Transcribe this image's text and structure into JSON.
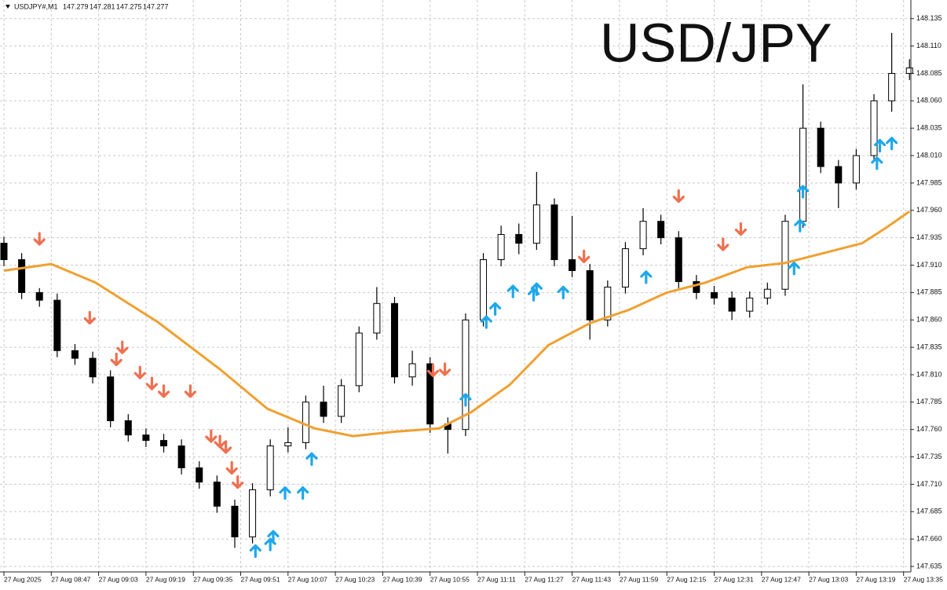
{
  "chart_data": {
    "type": "candlestick",
    "title": "USD/JPY",
    "subtitle": "USDJPY#,M1",
    "quote": [
      147.279,
      147.281,
      147.275,
      147.277
    ],
    "xlim": [
      0,
      307
    ],
    "xticks": [
      {
        "value": 0,
        "label": "27 Aug 2025"
      },
      {
        "value": 16,
        "label": "27 Aug 08:47"
      },
      {
        "value": 32,
        "label": "27 Aug 09:03"
      },
      {
        "value": 48,
        "label": "27 Aug 09:19"
      },
      {
        "value": 64,
        "label": "27 Aug 09:35"
      },
      {
        "value": 80,
        "label": "27 Aug 09:51"
      },
      {
        "value": 96,
        "label": "27 Aug 10:07"
      },
      {
        "value": 112,
        "label": "27 Aug 10:23"
      },
      {
        "value": 128,
        "label": "27 Aug 10:39"
      },
      {
        "value": 144,
        "label": "27 Aug 10:55"
      },
      {
        "value": 160,
        "label": "27 Aug 11:11"
      },
      {
        "value": 176,
        "label": "27 Aug 11:27"
      },
      {
        "value": 192,
        "label": "27 Aug 11:43"
      },
      {
        "value": 208,
        "label": "27 Aug 11:59"
      },
      {
        "value": 224,
        "label": "27 Aug 12:15"
      },
      {
        "value": 240,
        "label": "27 Aug 12:31"
      },
      {
        "value": 256,
        "label": "27 Aug 12:47"
      },
      {
        "value": 272,
        "label": "27 Aug 13:03"
      },
      {
        "value": 288,
        "label": "27 Aug 13:19"
      },
      {
        "value": 304,
        "label": "27 Aug 13:35"
      }
    ],
    "ylim": [
      147.63,
      148.152
    ],
    "yticks": [
      148.135,
      {
        "value": 148.11,
        "label": "148.110"
      },
      148.085,
      {
        "value": 148.06,
        "label": "148.060"
      },
      148.035,
      {
        "value": 148.01,
        "label": "148.010"
      },
      147.985,
      {
        "value": 147.96,
        "label": "147.960"
      },
      147.935,
      {
        "value": 147.91,
        "label": "147.910"
      },
      147.885,
      {
        "value": 147.86,
        "label": "147.860"
      },
      147.835,
      {
        "value": 147.81,
        "label": "147.810"
      },
      147.785,
      {
        "value": 147.76,
        "label": "147.760"
      },
      147.735,
      {
        "value": 147.71,
        "label": "147.710"
      },
      147.685,
      {
        "value": 147.66,
        "label": "147.660"
      },
      147.635
    ],
    "grid": true,
    "candles": {
      "up_color": "#ffffff",
      "down_color": "#000000",
      "x": [
        0,
        6,
        12,
        18,
        24,
        30,
        36,
        42,
        48,
        54,
        60,
        66,
        72,
        78,
        84,
        90,
        96,
        102,
        108,
        114,
        120,
        126,
        132,
        138,
        144,
        150,
        156,
        162,
        168,
        174,
        180,
        186,
        192,
        198,
        204,
        210,
        216,
        222,
        228,
        234,
        240,
        246,
        252,
        258,
        264,
        270,
        276,
        282,
        288,
        294,
        300,
        306
      ],
      "open": [
        147.93,
        147.915,
        147.885,
        147.878,
        147.832,
        147.825,
        147.808,
        147.768,
        147.755,
        147.75,
        147.745,
        147.725,
        147.712,
        147.69,
        147.662,
        147.705,
        147.745,
        147.748,
        147.785,
        147.772,
        147.8,
        147.848,
        147.875,
        147.808,
        147.82,
        147.765,
        147.76,
        147.86,
        147.915,
        147.938,
        147.93,
        147.965,
        147.915,
        147.905,
        147.86,
        147.89,
        147.925,
        147.95,
        147.935,
        147.895,
        147.885,
        147.88,
        147.868,
        147.88,
        147.888,
        147.95,
        148.035,
        148,
        147.985,
        148.01,
        148.06,
        148.085
      ],
      "high": [
        147.936,
        147.921,
        147.889,
        147.884,
        147.838,
        147.831,
        147.814,
        147.774,
        147.761,
        147.756,
        147.751,
        147.731,
        147.718,
        147.696,
        147.711,
        147.751,
        147.762,
        147.791,
        147.8,
        147.806,
        147.854,
        147.89,
        147.881,
        147.832,
        147.826,
        147.771,
        147.866,
        147.921,
        147.946,
        147.948,
        147.995,
        147.971,
        147.955,
        147.911,
        147.896,
        147.931,
        147.962,
        147.956,
        147.941,
        147.901,
        147.891,
        147.886,
        147.886,
        147.894,
        147.956,
        148.075,
        148.041,
        148.006,
        148.016,
        148.066,
        148.122,
        148.098
      ],
      "low": [
        147.909,
        147.879,
        147.872,
        147.826,
        147.819,
        147.802,
        147.762,
        147.749,
        147.744,
        147.739,
        147.719,
        147.706,
        147.684,
        147.652,
        147.656,
        147.699,
        147.739,
        147.742,
        147.766,
        147.766,
        147.794,
        147.842,
        147.802,
        147.8,
        147.757,
        147.738,
        147.754,
        147.854,
        147.909,
        147.92,
        147.924,
        147.909,
        147.899,
        147.842,
        147.854,
        147.884,
        147.919,
        147.929,
        147.889,
        147.879,
        147.874,
        147.86,
        147.862,
        147.874,
        147.882,
        147.944,
        147.994,
        147.962,
        147.979,
        148.004,
        148.05,
        148.079
      ],
      "close": [
        147.915,
        147.885,
        147.878,
        147.832,
        147.825,
        147.808,
        147.768,
        147.755,
        147.75,
        147.745,
        147.725,
        147.712,
        147.69,
        147.662,
        147.705,
        147.745,
        147.748,
        147.785,
        147.772,
        147.8,
        147.848,
        147.875,
        147.808,
        147.82,
        147.765,
        147.76,
        147.86,
        147.915,
        147.938,
        147.93,
        147.965,
        147.915,
        147.905,
        147.86,
        147.89,
        147.925,
        147.95,
        147.935,
        147.895,
        147.885,
        147.88,
        147.868,
        147.88,
        147.888,
        147.95,
        148.035,
        148,
        147.985,
        148.01,
        148.06,
        148.085,
        148.09
      ]
    },
    "moving_average": {
      "color": "#f0a030",
      "x": [
        0,
        16,
        31,
        52,
        73,
        89,
        105,
        118,
        132,
        147,
        158,
        171,
        184,
        198,
        211,
        224,
        237,
        251,
        264,
        277,
        290,
        298,
        306
      ],
      "values": [
        147.905,
        147.911,
        147.894,
        147.858,
        147.815,
        147.779,
        147.761,
        147.754,
        147.758,
        147.761,
        147.776,
        147.801,
        147.837,
        147.857,
        147.869,
        147.885,
        147.894,
        147.908,
        147.912,
        147.921,
        147.93,
        147.944,
        147.959
      ]
    },
    "signals": {
      "sell": {
        "color": "#ee7050",
        "x": [
          12,
          29,
          40,
          38,
          46,
          50,
          54,
          63,
          70,
          73,
          75,
          77,
          79,
          145,
          149,
          196,
          228,
          243,
          249
        ],
        "values": [
          147.934,
          147.862,
          147.835,
          147.824,
          147.812,
          147.802,
          147.795,
          147.795,
          147.754,
          147.749,
          147.744,
          147.725,
          147.712,
          147.814,
          147.815,
          147.918,
          147.973,
          147.929,
          147.943
        ]
      },
      "buy": {
        "color": "#1ea8ea",
        "x": [
          85,
          90,
          91,
          95,
          101,
          104,
          156,
          163,
          166,
          172,
          179,
          180,
          189,
          217,
          267,
          269,
          270,
          295,
          296,
          300
        ],
        "values": [
          147.649,
          147.655,
          147.662,
          147.702,
          147.702,
          147.733,
          147.787,
          147.858,
          147.87,
          147.886,
          147.883,
          147.888,
          147.885,
          147.899,
          147.907,
          147.946,
          147.977,
          148.003,
          148.019,
          148.021
        ]
      }
    }
  }
}
